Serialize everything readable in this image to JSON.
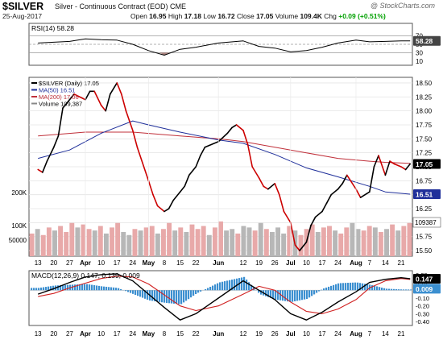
{
  "header": {
    "symbol": "$SILVER",
    "description": "Silver - Continuous Contract (EOD)  CME",
    "date": "25-Aug-2017",
    "open_label": "Open",
    "open": "16.95",
    "high_label": "High",
    "high": "17.18",
    "low_label": "Low",
    "low": "16.72",
    "close_label": "Close",
    "close": "17.05",
    "volume_label": "Volume",
    "volume": "109.4K",
    "chg_label": "Chg",
    "chg": "+0.09 (+0.51%)",
    "brand": "@ StockCharts.com"
  },
  "colors": {
    "price": "#000000",
    "price_down": "#cc0000",
    "ma50": "#1f2f9a",
    "ma200": "#c0303a",
    "vol_up": "#e8a9a9",
    "vol_dn": "#b7b7b7",
    "macd_hist": "#3b8fd0",
    "rsi_fill": "#a0706a"
  },
  "chart_data": [
    {
      "type": "line",
      "panel": "RSI",
      "legend": "RSI(14) 58.28",
      "ylim": [
        0,
        100
      ],
      "y_ticks": [
        70,
        50,
        30,
        10
      ],
      "reference_lines": [
        70,
        50,
        30
      ],
      "last_value_label": "58.28",
      "x": [
        "2017-03-13",
        "2017-03-20",
        "2017-03-27",
        "2017-04-03",
        "2017-04-10",
        "2017-04-17",
        "2017-04-24",
        "2017-05-01",
        "2017-05-08",
        "2017-05-15",
        "2017-05-22",
        "2017-06-01",
        "2017-06-12",
        "2017-06-19",
        "2017-06-26",
        "2017-07-03",
        "2017-07-10",
        "2017-07-17",
        "2017-07-24",
        "2017-08-01",
        "2017-08-07",
        "2017-08-14",
        "2017-08-21",
        "2017-08-25"
      ],
      "values": [
        53,
        55,
        57,
        63,
        61,
        60,
        50,
        35,
        24,
        38,
        43,
        53,
        58,
        45,
        41,
        32,
        35,
        43,
        53,
        60,
        56,
        57,
        58,
        58.28
      ]
    },
    {
      "type": "line",
      "panel": "Price",
      "legend": [
        "$SILVER (Daily) 17.05",
        "MA(50) 16.51",
        "MA(200) 17.06",
        "Volume 109,387"
      ],
      "ylim": [
        15.4,
        18.6
      ],
      "y_ticks": [
        18.5,
        18.25,
        18.0,
        17.75,
        17.5,
        17.25,
        17.0,
        16.75,
        16.5,
        16.25,
        16.0,
        15.75,
        15.5
      ],
      "last_value_labels": [
        "17.05",
        "16.51"
      ],
      "x_tick_labels": [
        "13",
        "20",
        "27",
        "Apr",
        "10",
        "17",
        "24",
        "May",
        "8",
        "15",
        "22",
        "Jun",
        "12",
        "19",
        "26",
        "Jul",
        "10",
        "17",
        "24",
        "Aug",
        "7",
        "14",
        "21"
      ],
      "series": [
        {
          "name": "$SILVER (Daily)",
          "x": [
            "2017-03-13",
            "2017-03-15",
            "2017-03-17",
            "2017-03-20",
            "2017-03-22",
            "2017-03-24",
            "2017-03-27",
            "2017-03-29",
            "2017-04-03",
            "2017-04-05",
            "2017-04-07",
            "2017-04-10",
            "2017-04-12",
            "2017-04-14",
            "2017-04-17",
            "2017-04-19",
            "2017-04-21",
            "2017-04-24",
            "2017-04-26",
            "2017-05-01",
            "2017-05-03",
            "2017-05-05",
            "2017-05-08",
            "2017-05-10",
            "2017-05-12",
            "2017-05-15",
            "2017-05-17",
            "2017-05-19",
            "2017-05-22",
            "2017-05-24",
            "2017-05-26",
            "2017-06-01",
            "2017-06-05",
            "2017-06-07",
            "2017-06-09",
            "2017-06-12",
            "2017-06-14",
            "2017-06-16",
            "2017-06-19",
            "2017-06-21",
            "2017-06-23",
            "2017-06-26",
            "2017-06-28",
            "2017-06-30",
            "2017-07-03",
            "2017-07-05",
            "2017-07-07",
            "2017-07-10",
            "2017-07-12",
            "2017-07-14",
            "2017-07-17",
            "2017-07-19",
            "2017-07-21",
            "2017-07-24",
            "2017-07-26",
            "2017-07-28",
            "2017-08-01",
            "2017-08-03",
            "2017-08-07",
            "2017-08-09",
            "2017-08-11",
            "2017-08-14",
            "2017-08-16",
            "2017-08-18",
            "2017-08-21",
            "2017-08-23",
            "2017-08-25"
          ],
          "values": [
            16.95,
            16.9,
            17.1,
            17.35,
            17.55,
            18.05,
            18.2,
            18.3,
            18.2,
            18.35,
            18.35,
            18.1,
            18.0,
            18.3,
            18.5,
            18.3,
            18.0,
            17.65,
            17.35,
            16.75,
            16.5,
            16.3,
            16.2,
            16.25,
            16.4,
            16.55,
            16.65,
            16.85,
            17.0,
            17.2,
            17.35,
            17.45,
            17.6,
            17.7,
            17.75,
            17.65,
            17.4,
            17.0,
            16.8,
            16.65,
            16.6,
            16.7,
            16.5,
            16.2,
            16.0,
            15.6,
            15.5,
            15.65,
            15.95,
            16.1,
            16.2,
            16.35,
            16.5,
            16.6,
            16.7,
            16.85,
            16.6,
            16.45,
            16.55,
            17.0,
            17.2,
            16.85,
            17.1,
            17.05,
            17.0,
            16.95,
            17.05
          ]
        },
        {
          "name": "MA(50)",
          "x": [
            "2017-03-13",
            "2017-03-27",
            "2017-04-10",
            "2017-04-24",
            "2017-05-01",
            "2017-05-15",
            "2017-06-01",
            "2017-06-12",
            "2017-06-26",
            "2017-07-10",
            "2017-07-24",
            "2017-08-07",
            "2017-08-14",
            "2017-08-25"
          ],
          "values": [
            17.15,
            17.3,
            17.6,
            17.82,
            17.75,
            17.62,
            17.48,
            17.42,
            17.22,
            16.98,
            16.82,
            16.65,
            16.55,
            16.51
          ]
        },
        {
          "name": "MA(200)",
          "x": [
            "2017-03-13",
            "2017-04-03",
            "2017-04-24",
            "2017-05-15",
            "2017-06-01",
            "2017-06-12",
            "2017-06-26",
            "2017-07-10",
            "2017-07-24",
            "2017-08-07",
            "2017-08-14",
            "2017-08-25"
          ],
          "values": [
            17.55,
            17.62,
            17.62,
            17.55,
            17.5,
            17.45,
            17.35,
            17.25,
            17.15,
            17.1,
            17.08,
            17.06
          ]
        }
      ]
    },
    {
      "type": "bar",
      "panel": "Volume",
      "y_ticks": [
        "200K",
        "100K",
        "50000"
      ],
      "last_value_label": "109387",
      "values": [
        75,
        90,
        70,
        95,
        85,
        100,
        80,
        110,
        95,
        105,
        90,
        85,
        100,
        75,
        95,
        110,
        80,
        70,
        90,
        85,
        95,
        100,
        75,
        90,
        110,
        85,
        95,
        80,
        105,
        90,
        100,
        70,
        95,
        115,
        85,
        90,
        75,
        100,
        95,
        85,
        110,
        90,
        80,
        95,
        75,
        100,
        85,
        70,
        90,
        105,
        80,
        95,
        100,
        85,
        75,
        95,
        110,
        90,
        85,
        100,
        95,
        80,
        90,
        105,
        85,
        100,
        110
      ],
      "up": [
        true,
        false,
        true,
        true,
        false,
        true,
        true,
        true,
        false,
        true,
        true,
        false,
        true,
        false,
        true,
        true,
        false,
        false,
        true,
        false,
        true,
        true,
        false,
        true,
        true,
        false,
        true,
        false,
        true,
        true,
        true,
        false,
        true,
        true,
        false,
        false,
        true,
        false,
        false,
        true,
        false,
        true,
        false,
        false,
        false,
        true,
        false,
        true,
        true,
        true,
        false,
        true,
        true,
        false,
        true,
        true,
        false,
        false,
        true,
        true,
        false,
        true,
        false,
        true,
        false,
        true,
        true
      ]
    },
    {
      "type": "line",
      "panel": "MACD",
      "legend": "MACD(12,26,9) 0.147, 0.139, 0.009",
      "ylim": [
        -0.45,
        0.25
      ],
      "y_ticks": [
        0.2,
        0.1,
        0.0,
        -0.1,
        -0.2,
        -0.3,
        -0.4
      ],
      "last_value_labels": [
        "0.147",
        "0.009"
      ],
      "x_tick_labels": [
        "13",
        "20",
        "27",
        "Apr",
        "10",
        "17",
        "24",
        "May",
        "8",
        "15",
        "22",
        "Jun",
        "12",
        "19",
        "26",
        "Jul",
        "10",
        "17",
        "24",
        "Aug",
        "7",
        "14",
        "21"
      ],
      "series": [
        {
          "name": "MACD",
          "x": [
            "2017-03-13",
            "2017-03-20",
            "2017-03-27",
            "2017-04-03",
            "2017-04-10",
            "2017-04-17",
            "2017-04-24",
            "2017-05-01",
            "2017-05-08",
            "2017-05-15",
            "2017-05-22",
            "2017-06-01",
            "2017-06-12",
            "2017-06-19",
            "2017-06-26",
            "2017-07-03",
            "2017-07-10",
            "2017-07-17",
            "2017-07-24",
            "2017-08-01",
            "2017-08-07",
            "2017-08-14",
            "2017-08-21",
            "2017-08-25"
          ],
          "values": [
            -0.05,
            0.02,
            0.1,
            0.17,
            0.2,
            0.21,
            0.12,
            -0.05,
            -0.22,
            -0.38,
            -0.3,
            -0.1,
            0.12,
            0.0,
            -0.12,
            -0.3,
            -0.38,
            -0.28,
            -0.15,
            -0.02,
            0.1,
            0.14,
            0.16,
            0.147
          ]
        },
        {
          "name": "Signal",
          "x": [
            "2017-03-13",
            "2017-03-20",
            "2017-03-27",
            "2017-04-03",
            "2017-04-10",
            "2017-04-17",
            "2017-04-24",
            "2017-05-01",
            "2017-05-08",
            "2017-05-15",
            "2017-05-22",
            "2017-06-01",
            "2017-06-12",
            "2017-06-19",
            "2017-06-26",
            "2017-07-03",
            "2017-07-10",
            "2017-07-17",
            "2017-07-24",
            "2017-08-01",
            "2017-08-07",
            "2017-08-14",
            "2017-08-21",
            "2017-08-25"
          ],
          "values": [
            -0.08,
            -0.04,
            0.03,
            0.09,
            0.15,
            0.18,
            0.17,
            0.08,
            -0.06,
            -0.2,
            -0.26,
            -0.2,
            -0.05,
            0.05,
            0.0,
            -0.15,
            -0.27,
            -0.3,
            -0.24,
            -0.12,
            0.03,
            0.12,
            0.15,
            0.139
          ]
        },
        {
          "name": "Histogram",
          "x": [
            "2017-03-13",
            "2017-03-20",
            "2017-03-27",
            "2017-04-03",
            "2017-04-10",
            "2017-04-17",
            "2017-04-24",
            "2017-05-01",
            "2017-05-08",
            "2017-05-15",
            "2017-05-22",
            "2017-06-01",
            "2017-06-12",
            "2017-06-19",
            "2017-06-26",
            "2017-07-03",
            "2017-07-10",
            "2017-07-17",
            "2017-07-24",
            "2017-08-01",
            "2017-08-07",
            "2017-08-14",
            "2017-08-21",
            "2017-08-25"
          ],
          "values": [
            0.03,
            0.06,
            0.07,
            0.08,
            0.05,
            0.03,
            -0.05,
            -0.13,
            -0.16,
            -0.18,
            -0.04,
            0.1,
            0.17,
            -0.05,
            -0.12,
            -0.15,
            -0.11,
            0.02,
            0.09,
            0.1,
            0.07,
            0.02,
            0.01,
            0.009
          ]
        }
      ]
    }
  ]
}
